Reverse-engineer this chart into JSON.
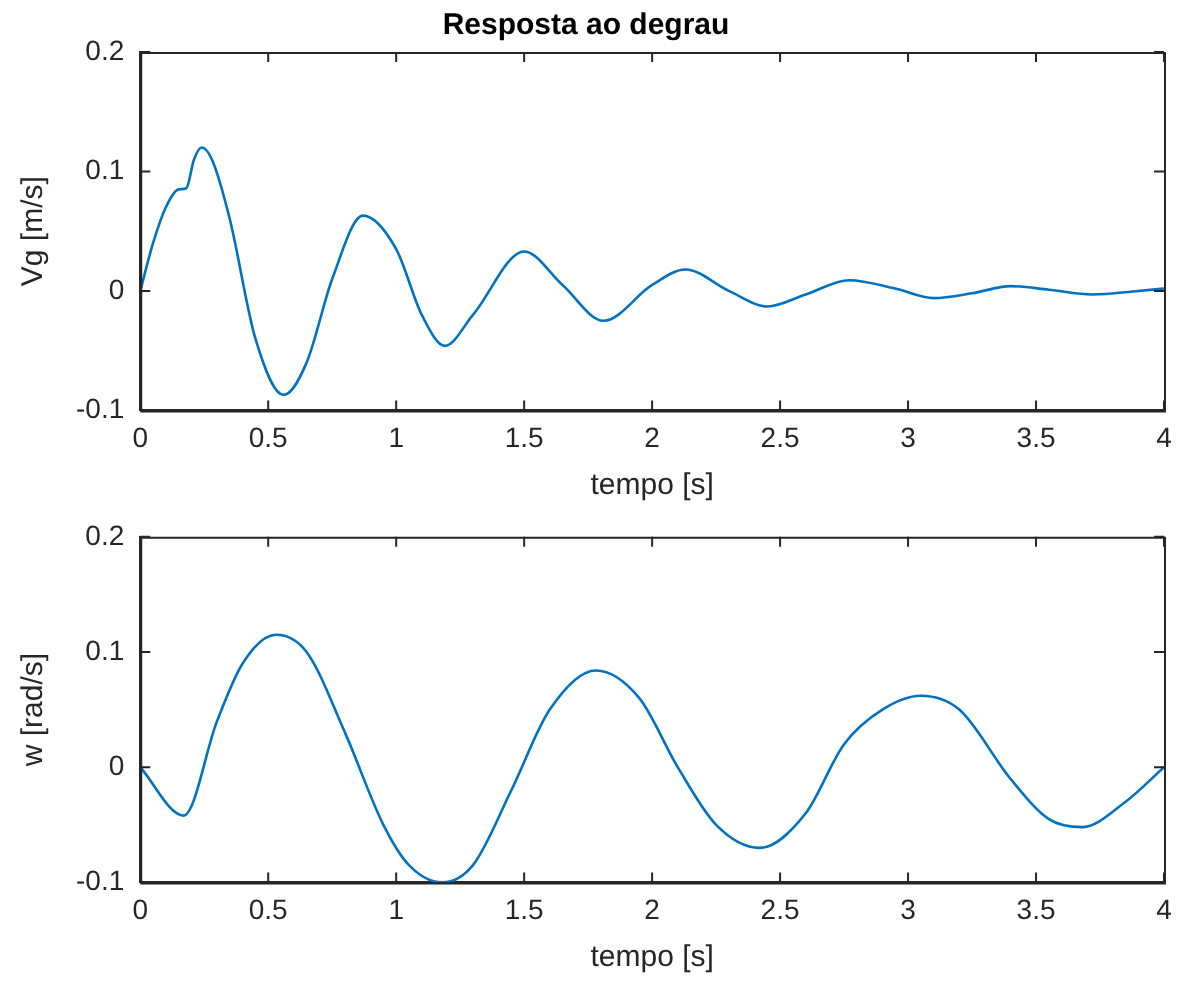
{
  "chart_data": [
    {
      "type": "line",
      "title": "Resposta ao degrau",
      "xlabel": "tempo [s]",
      "ylabel": "Vg [m/s]",
      "xlim": [
        0,
        4
      ],
      "ylim": [
        -0.1,
        0.2
      ],
      "xticks": [
        0,
        0.5,
        1,
        1.5,
        2,
        2.5,
        3,
        3.5,
        4
      ],
      "yticks": [
        -0.1,
        0,
        0.1,
        0.2
      ],
      "grid": false,
      "legend": false,
      "line_style": "solid",
      "marker": "none",
      "series": [
        {
          "color": "#0072bd",
          "x": [
            0,
            0.05,
            0.1,
            0.15,
            0.18,
            0.21,
            0.24,
            0.28,
            0.35,
            0.45,
            0.56,
            0.65,
            0.75,
            0.87,
            1.0,
            1.1,
            1.19,
            1.3,
            1.5,
            1.65,
            1.81,
            2.0,
            2.13,
            2.3,
            2.45,
            2.6,
            2.77,
            2.95,
            3.1,
            3.25,
            3.4,
            3.55,
            3.72,
            3.9,
            4.0
          ],
          "values": [
            0,
            0.04,
            0.07,
            0.085,
            0.086,
            0.11,
            0.12,
            0.11,
            0.06,
            -0.04,
            -0.087,
            -0.06,
            0.01,
            0.063,
            0.035,
            -0.02,
            -0.046,
            -0.02,
            0.033,
            0.005,
            -0.025,
            0.005,
            0.018,
            0,
            -0.013,
            -0.003,
            0.009,
            0.002,
            -0.006,
            -0.002,
            0.004,
            0.001,
            -0.003,
            0,
            0.002
          ]
        }
      ]
    },
    {
      "type": "line",
      "xlabel": "tempo [s]",
      "ylabel": "w [rad/s]",
      "xlim": [
        0,
        4
      ],
      "ylim": [
        -0.1,
        0.2
      ],
      "xticks": [
        0,
        0.5,
        1,
        1.5,
        2,
        2.5,
        3,
        3.5,
        4
      ],
      "yticks": [
        -0.1,
        0,
        0.1,
        0.2
      ],
      "grid": false,
      "legend": false,
      "line_style": "solid",
      "marker": "none",
      "series": [
        {
          "color": "#0072bd",
          "x": [
            0,
            0.17,
            0.3,
            0.4,
            0.53,
            0.65,
            0.8,
            0.95,
            1.05,
            1.18,
            1.3,
            1.45,
            1.6,
            1.78,
            1.95,
            2.1,
            2.25,
            2.42,
            2.6,
            2.75,
            2.9,
            3.05,
            3.2,
            3.4,
            3.55,
            3.68,
            3.85,
            4.0
          ],
          "values": [
            0,
            -0.042,
            0.04,
            0.09,
            0.115,
            0.1,
            0.03,
            -0.05,
            -0.085,
            -0.1,
            -0.085,
            -0.02,
            0.05,
            0.084,
            0.06,
            0,
            -0.05,
            -0.07,
            -0.04,
            0.02,
            0.05,
            0.062,
            0.05,
            -0.01,
            -0.045,
            -0.052,
            -0.03,
            0
          ]
        }
      ]
    }
  ]
}
